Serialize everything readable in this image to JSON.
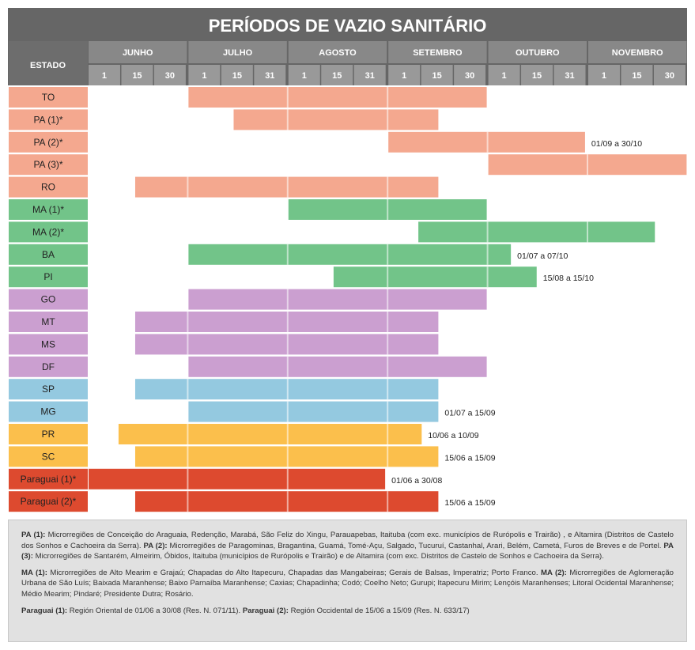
{
  "chart_data": {
    "type": "gantt",
    "title": "PERÍODOS DE VAZIO SANITÁRIO",
    "state_header": "ESTADO",
    "months": [
      {
        "name": "JUNHO",
        "ticks": [
          "1",
          "15",
          "30"
        ]
      },
      {
        "name": "JULHO",
        "ticks": [
          "1",
          "15",
          "31"
        ]
      },
      {
        "name": "AGOSTO",
        "ticks": [
          "1",
          "15",
          "31"
        ]
      },
      {
        "name": "SETEMBRO",
        "ticks": [
          "1",
          "15",
          "30"
        ]
      },
      {
        "name": "OUTUBRO",
        "ticks": [
          "1",
          "15",
          "31"
        ]
      },
      {
        "name": "NOVEMBRO",
        "ticks": [
          "1",
          "15",
          "30"
        ]
      }
    ],
    "rows": [
      {
        "label": "TO",
        "start": "01/07",
        "end": "30/09",
        "color": "#f4a88f",
        "note": ""
      },
      {
        "label": "PA (1)*",
        "start": "15/07",
        "end": "15/09",
        "color": "#f4a88f",
        "note": ""
      },
      {
        "label": "PA (2)*",
        "start": "01/09",
        "end": "30/10",
        "color": "#f4a88f",
        "note": "01/09 a 30/10"
      },
      {
        "label": "PA (3)*",
        "start": "01/10",
        "end": "30/11",
        "color": "#f4a88f",
        "note": ""
      },
      {
        "label": "RO",
        "start": "15/06",
        "end": "15/09",
        "color": "#f4a88f",
        "note": ""
      },
      {
        "label": "MA (1)*",
        "start": "01/08",
        "end": "30/09",
        "color": "#72c489",
        "note": ""
      },
      {
        "label": "MA (2)*",
        "start": "10/09",
        "end": "20/11",
        "color": "#72c489",
        "note": ""
      },
      {
        "label": "BA",
        "start": "01/07",
        "end": "07/10",
        "color": "#72c489",
        "note": "01/07 a 07/10"
      },
      {
        "label": "PI",
        "start": "15/08",
        "end": "15/10",
        "color": "#72c489",
        "note": "15/08 a 15/10"
      },
      {
        "label": "GO",
        "start": "01/07",
        "end": "30/09",
        "color": "#cb9fd0",
        "note": ""
      },
      {
        "label": "MT",
        "start": "15/06",
        "end": "15/09",
        "color": "#cb9fd0",
        "note": ""
      },
      {
        "label": "MS",
        "start": "15/06",
        "end": "15/09",
        "color": "#cb9fd0",
        "note": ""
      },
      {
        "label": "DF",
        "start": "01/07",
        "end": "30/09",
        "color": "#cb9fd0",
        "note": ""
      },
      {
        "label": "SP",
        "start": "15/06",
        "end": "15/09",
        "color": "#94c9e0",
        "note": ""
      },
      {
        "label": "MG",
        "start": "01/07",
        "end": "15/09",
        "color": "#94c9e0",
        "note": "01/07 a 15/09"
      },
      {
        "label": "PR",
        "start": "10/06",
        "end": "10/09",
        "color": "#fbbf4c",
        "note": "10/06 a 10/09"
      },
      {
        "label": "SC",
        "start": "15/06",
        "end": "15/09",
        "color": "#fbbf4c",
        "note": "15/06 a 15/09"
      },
      {
        "label": "Paraguai (1)*",
        "start": "01/06",
        "end": "30/08",
        "color": "#dd4a2f",
        "note": "01/06 a 30/08"
      },
      {
        "label": "Paraguai (2)*",
        "start": "15/06",
        "end": "15/09",
        "color": "#dd4a2f",
        "note": "15/06 a 15/09"
      }
    ]
  },
  "notes": {
    "pa": [
      {
        "bold": "PA (1):",
        "text": " Microrregiões de Conceição do Araguaia, Redenção, Marabá, São Feliz do Xingu, Parauapebas, Itaituba (com exc. municípios de Rurópolis e Trairão) , e Altamira (Distritos de Castelo dos Sonhos e Cachoeira da Serra). "
      },
      {
        "bold": "PA (2):",
        "text": " Microrregiões de Paragominas, Bragantina, Guamá, Tomé-Açu, Salgado, Tucuruí, Castanhal, Arari, Belém, Cametá, Furos de Breves e de Portel. "
      },
      {
        "bold": "PA (3):",
        "text": " Microrregiões de Santarém, Almeirim, Óbidos, Itaituba (municípios de Rurópolis e Trairão) e de Altamira (com exc. Distritos de Castelo de Sonhos e Cachoeira da Serra)."
      }
    ],
    "ma": [
      {
        "bold": "MA (1):",
        "text": " Microrregiões de Alto Mearim e Grajaú; Chapadas do Alto Itapecuru, Chapadas das Mangabeiras; Gerais de Balsas, Imperatriz; Porto Franco. "
      },
      {
        "bold": "MA (2):",
        "text": " Microrregiões de Aglomeração Urbana de São Luís; Baixada Maranhense; Baixo Parnaíba Maranhense; Caxias; Chapadinha; Codó; Coelho Neto; Gurupi; Itapecuru Mirim; Lençóis Maranhenses; Litoral Ocidental Maranhense; Médio Mearim; Pindaré; Presidente Dutra; Rosário."
      }
    ],
    "py": [
      {
        "bold": "Paraguai (1):",
        "text": " Región Oriental de 01/06  a 30/08 (Res. N. 071/11). "
      },
      {
        "bold": "Paraguai (2):",
        "text": " Región Occidental de 15/06 a 15/09 (Res. N. 633/17)"
      }
    ]
  }
}
